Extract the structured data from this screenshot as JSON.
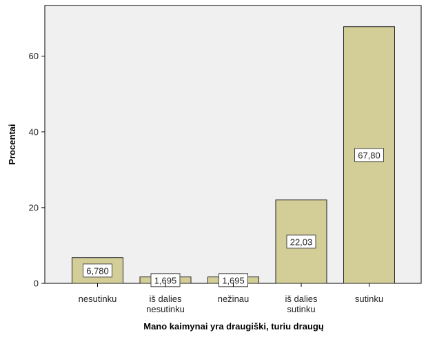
{
  "chart_data": {
    "type": "bar",
    "categories": [
      [
        "nesutinku"
      ],
      [
        "iš dalies",
        "nesutinku"
      ],
      [
        "nežinau"
      ],
      [
        "iš dalies",
        "sutinku"
      ],
      [
        "sutinku"
      ]
    ],
    "values": [
      6.78,
      1.695,
      1.695,
      22.03,
      67.8
    ],
    "data_labels": [
      "6,780",
      "1,695",
      "1,695",
      "22,03",
      "67,80"
    ],
    "xlabel": "Mano kaimynai yra draugiški, turiu draugų",
    "ylabel": "Procentai",
    "yticks": [
      0,
      20,
      40,
      60
    ],
    "ylim": [
      0,
      72.5
    ],
    "grid": false,
    "colors": {
      "plot_background": "#f0f0f0",
      "bar_fill": "#d3ce97",
      "bar_stroke": "#222222",
      "label_box_fill": "#ffffff",
      "axis": "#000000"
    }
  }
}
